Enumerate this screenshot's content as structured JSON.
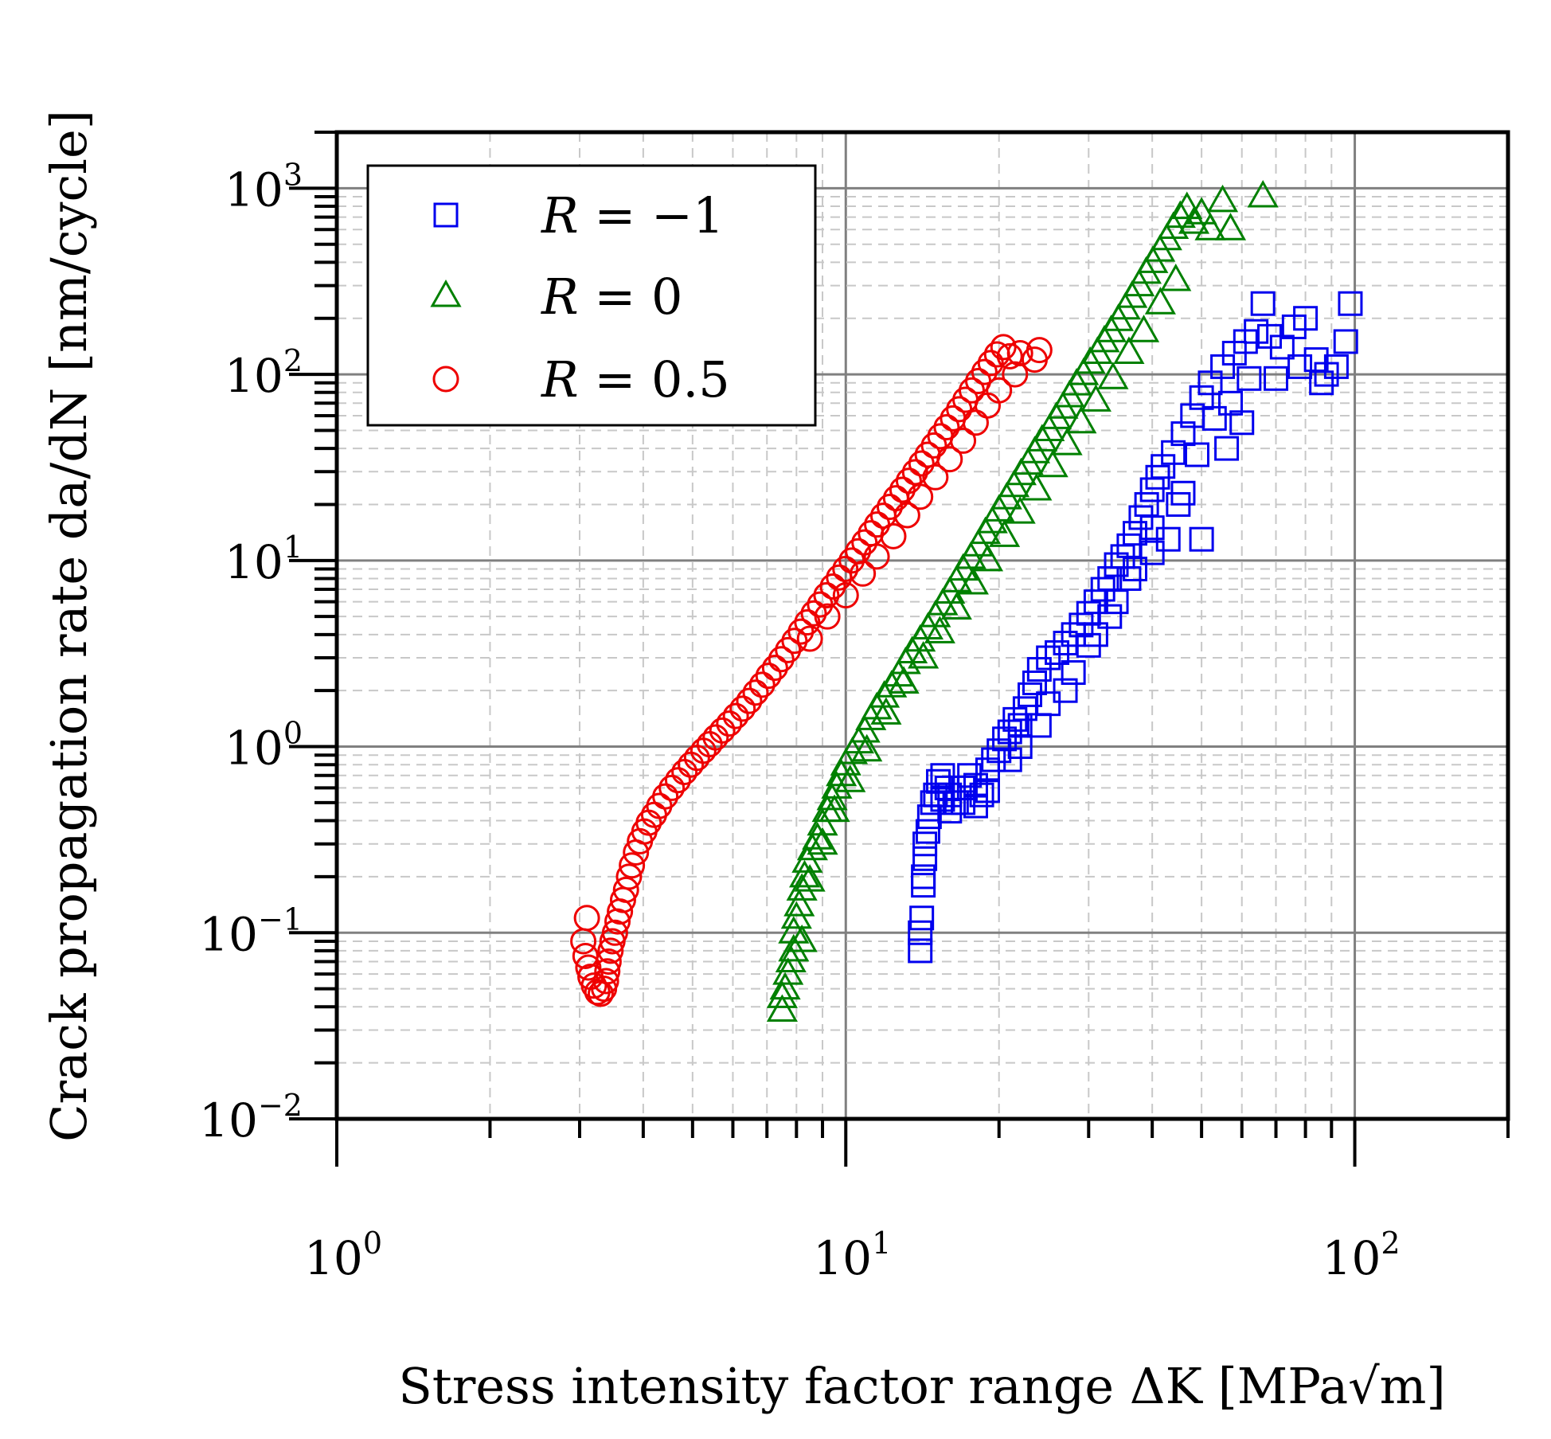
{
  "chart_data": {
    "type": "scatter",
    "scale": "log-log",
    "title": "",
    "xlabel": "Stress intensity factor range ΔK [MPa√m]",
    "ylabel": "Crack propagation rate da/dN [nm/cycle]",
    "xlim": [
      1,
      200
    ],
    "ylim": [
      0.01,
      2000
    ],
    "grid": true,
    "legend_position": "top-left",
    "x_ticks": [
      {
        "base": "10",
        "exp": "0",
        "value": 1
      },
      {
        "base": "10",
        "exp": "1",
        "value": 10
      },
      {
        "base": "10",
        "exp": "2",
        "value": 100
      }
    ],
    "y_ticks": [
      {
        "base": "10",
        "exp": "−2",
        "value": 0.01
      },
      {
        "base": "10",
        "exp": "−1",
        "value": 0.1
      },
      {
        "base": "10",
        "exp": "0",
        "value": 1
      },
      {
        "base": "10",
        "exp": "1",
        "value": 10
      },
      {
        "base": "10",
        "exp": "2",
        "value": 100
      },
      {
        "base": "10",
        "exp": "3",
        "value": 1000
      }
    ],
    "series": [
      {
        "name": "R = −1",
        "label_var": "R",
        "label_rest": " = −1",
        "marker": "square",
        "color": "#0000ee",
        "points": [
          [
            14.0,
            0.08
          ],
          [
            14.0,
            0.1
          ],
          [
            14.1,
            0.12
          ],
          [
            14.2,
            0.18
          ],
          [
            14.2,
            0.2
          ],
          [
            14.3,
            0.25
          ],
          [
            14.3,
            0.3
          ],
          [
            14.5,
            0.35
          ],
          [
            14.6,
            0.42
          ],
          [
            14.8,
            0.5
          ],
          [
            15.0,
            0.55
          ],
          [
            15.2,
            0.65
          ],
          [
            15.5,
            0.7
          ],
          [
            15.8,
            0.6
          ],
          [
            16.0,
            0.55
          ],
          [
            16.5,
            0.5
          ],
          [
            17.0,
            0.6
          ],
          [
            17.5,
            0.7
          ],
          [
            18.0,
            0.62
          ],
          [
            18.5,
            0.55
          ],
          [
            19.0,
            0.75
          ],
          [
            19.5,
            0.85
          ],
          [
            20.0,
            0.95
          ],
          [
            20.5,
            1.1
          ],
          [
            21.0,
            1.2
          ],
          [
            21.5,
            1.4
          ],
          [
            22.0,
            1.3
          ],
          [
            22.5,
            1.6
          ],
          [
            23.0,
            1.9
          ],
          [
            23.5,
            2.2
          ],
          [
            24.0,
            2.6
          ],
          [
            25.0,
            3.0
          ],
          [
            26.0,
            3.2
          ],
          [
            27.0,
            3.6
          ],
          [
            28.0,
            4.0
          ],
          [
            29.0,
            4.5
          ],
          [
            30.0,
            5.2
          ],
          [
            31.0,
            6.0
          ],
          [
            32.0,
            7.0
          ],
          [
            33.0,
            8.0
          ],
          [
            34.0,
            9.5
          ],
          [
            35.0,
            10.5
          ],
          [
            36.0,
            12.0
          ],
          [
            37.0,
            14.0
          ],
          [
            38.0,
            17.0
          ],
          [
            39.0,
            20.0
          ],
          [
            40.0,
            24.0
          ],
          [
            41.0,
            28.0
          ],
          [
            42.0,
            32.0
          ],
          [
            44.0,
            38.0
          ],
          [
            46.0,
            48.0
          ],
          [
            48.0,
            60.0
          ],
          [
            50.0,
            75.0
          ],
          [
            52.0,
            90.0
          ],
          [
            55.0,
            110.0
          ],
          [
            58.0,
            130.0
          ],
          [
            61.0,
            150.0
          ],
          [
            64.0,
            170.0
          ],
          [
            68.0,
            160.0
          ],
          [
            72.0,
            140.0
          ],
          [
            76.0,
            180.0
          ],
          [
            80.0,
            200.0
          ],
          [
            84.0,
            120.0
          ],
          [
            88.0,
            100.0
          ],
          [
            92.0,
            110.0
          ],
          [
            96.0,
            150.0
          ],
          [
            98.0,
            240.0
          ],
          [
            66.0,
            240.0
          ],
          [
            56.0,
            40.0
          ],
          [
            60.0,
            55.0
          ],
          [
            50.0,
            13.0
          ],
          [
            45.0,
            20.0
          ],
          [
            40.0,
            15.0
          ],
          [
            36.0,
            8.0
          ],
          [
            33.0,
            5.0
          ],
          [
            30.0,
            3.5
          ],
          [
            27.0,
            2.0
          ],
          [
            24.0,
            1.3
          ],
          [
            21.0,
            0.85
          ],
          [
            18.0,
            0.48
          ],
          [
            16.0,
            0.45
          ],
          [
            15.5,
            0.52
          ],
          [
            17.0,
            0.5
          ],
          [
            19.0,
            0.58
          ],
          [
            22.0,
            1.0
          ],
          [
            25.0,
            1.7
          ],
          [
            28.0,
            2.5
          ],
          [
            31.0,
            4.0
          ],
          [
            34.0,
            6.0
          ],
          [
            37.0,
            9.0
          ],
          [
            40.0,
            11.0
          ],
          [
            43.0,
            13.0
          ],
          [
            46.0,
            23.0
          ],
          [
            49.0,
            37.0
          ],
          [
            53.0,
            58.0
          ],
          [
            57.0,
            70.0
          ],
          [
            62.0,
            95.0
          ],
          [
            70.0,
            95.0
          ],
          [
            78.0,
            110.0
          ],
          [
            86.0,
            90.0
          ]
        ]
      },
      {
        "name": "R = 0",
        "label_var": "R",
        "label_rest": " = 0",
        "marker": "triangle",
        "color": "#008000",
        "points": [
          [
            7.5,
            0.038
          ],
          [
            7.5,
            0.045
          ],
          [
            7.6,
            0.05
          ],
          [
            7.7,
            0.06
          ],
          [
            7.8,
            0.07
          ],
          [
            7.9,
            0.08
          ],
          [
            7.9,
            0.1
          ],
          [
            8.0,
            0.12
          ],
          [
            8.1,
            0.14
          ],
          [
            8.2,
            0.17
          ],
          [
            8.3,
            0.2
          ],
          [
            8.4,
            0.24
          ],
          [
            8.6,
            0.28
          ],
          [
            8.8,
            0.32
          ],
          [
            9.0,
            0.38
          ],
          [
            9.2,
            0.45
          ],
          [
            9.4,
            0.52
          ],
          [
            9.6,
            0.6
          ],
          [
            9.8,
            0.7
          ],
          [
            10.0,
            0.8
          ],
          [
            10.3,
            0.92
          ],
          [
            10.6,
            1.05
          ],
          [
            10.9,
            1.2
          ],
          [
            11.2,
            1.4
          ],
          [
            11.5,
            1.6
          ],
          [
            11.9,
            1.85
          ],
          [
            12.3,
            2.1
          ],
          [
            12.7,
            2.4
          ],
          [
            13.1,
            2.8
          ],
          [
            13.5,
            3.2
          ],
          [
            14.0,
            3.7
          ],
          [
            14.5,
            4.3
          ],
          [
            15.0,
            5.0
          ],
          [
            15.5,
            5.8
          ],
          [
            16.0,
            6.7
          ],
          [
            16.5,
            7.7
          ],
          [
            17.0,
            8.9
          ],
          [
            17.6,
            10.3
          ],
          [
            18.2,
            12.0
          ],
          [
            18.8,
            14.0
          ],
          [
            19.4,
            16.0
          ],
          [
            20.0,
            18.5
          ],
          [
            20.7,
            21.5
          ],
          [
            21.4,
            25.0
          ],
          [
            22.1,
            29.0
          ],
          [
            22.8,
            33.0
          ],
          [
            23.5,
            38.0
          ],
          [
            24.3,
            44.0
          ],
          [
            25.1,
            50.0
          ],
          [
            25.9,
            58.0
          ],
          [
            26.7,
            66.0
          ],
          [
            27.5,
            76.0
          ],
          [
            28.4,
            88.0
          ],
          [
            29.3,
            100.0
          ],
          [
            30.2,
            115.0
          ],
          [
            31.2,
            130.0
          ],
          [
            32.2,
            150.0
          ],
          [
            33.2,
            170.0
          ],
          [
            34.3,
            195.0
          ],
          [
            35.4,
            225.0
          ],
          [
            36.5,
            260.0
          ],
          [
            37.7,
            300.0
          ],
          [
            38.9,
            350.0
          ],
          [
            40.1,
            400.0
          ],
          [
            41.4,
            460.0
          ],
          [
            42.7,
            530.0
          ],
          [
            44.0,
            610.0
          ],
          [
            45.4,
            700.0
          ],
          [
            46.8,
            780.0
          ],
          [
            48.3,
            650.0
          ],
          [
            50.0,
            730.0
          ],
          [
            52.0,
            600.0
          ],
          [
            55.0,
            850.0
          ],
          [
            57.0,
            600.0
          ],
          [
            66.0,
            900.0
          ],
          [
            8.2,
            0.09
          ],
          [
            8.5,
            0.19
          ],
          [
            9.0,
            0.3
          ],
          [
            9.5,
            0.45
          ],
          [
            10.2,
            0.65
          ],
          [
            11.0,
            0.95
          ],
          [
            12.0,
            1.5
          ],
          [
            13.0,
            2.2
          ],
          [
            14.2,
            3.0
          ],
          [
            15.3,
            4.1
          ],
          [
            16.5,
            5.5
          ],
          [
            17.8,
            7.5
          ],
          [
            19.0,
            10.0
          ],
          [
            20.5,
            13.5
          ],
          [
            22.0,
            18.0
          ],
          [
            23.7,
            24.0
          ],
          [
            25.5,
            32.0
          ],
          [
            27.2,
            42.0
          ],
          [
            29.0,
            55.0
          ],
          [
            31.0,
            72.0
          ],
          [
            33.5,
            95.0
          ],
          [
            36.0,
            130.0
          ],
          [
            38.5,
            170.0
          ],
          [
            41.5,
            240.0
          ],
          [
            44.5,
            320.0
          ]
        ]
      },
      {
        "name": "R = 0.5",
        "label_var": "R",
        "label_rest": " = 0.5",
        "marker": "circle",
        "color": "#ee0000",
        "points": [
          [
            3.1,
            0.12
          ],
          [
            3.05,
            0.09
          ],
          [
            3.08,
            0.075
          ],
          [
            3.12,
            0.065
          ],
          [
            3.15,
            0.058
          ],
          [
            3.2,
            0.052
          ],
          [
            3.25,
            0.048
          ],
          [
            3.3,
            0.047
          ],
          [
            3.35,
            0.05
          ],
          [
            3.38,
            0.055
          ],
          [
            3.4,
            0.062
          ],
          [
            3.42,
            0.07
          ],
          [
            3.45,
            0.08
          ],
          [
            3.48,
            0.09
          ],
          [
            3.52,
            0.1
          ],
          [
            3.56,
            0.115
          ],
          [
            3.6,
            0.13
          ],
          [
            3.65,
            0.15
          ],
          [
            3.7,
            0.17
          ],
          [
            3.75,
            0.2
          ],
          [
            3.8,
            0.23
          ],
          [
            3.87,
            0.27
          ],
          [
            3.94,
            0.31
          ],
          [
            4.02,
            0.35
          ],
          [
            4.1,
            0.39
          ],
          [
            4.2,
            0.43
          ],
          [
            4.3,
            0.48
          ],
          [
            4.42,
            0.54
          ],
          [
            4.55,
            0.6
          ],
          [
            4.68,
            0.66
          ],
          [
            4.82,
            0.73
          ],
          [
            4.96,
            0.8
          ],
          [
            5.1,
            0.87
          ],
          [
            5.25,
            0.95
          ],
          [
            5.4,
            1.03
          ],
          [
            5.55,
            1.12
          ],
          [
            5.72,
            1.22
          ],
          [
            5.9,
            1.33
          ],
          [
            6.08,
            1.46
          ],
          [
            6.27,
            1.6
          ],
          [
            6.46,
            1.76
          ],
          [
            6.65,
            1.95
          ],
          [
            6.85,
            2.15
          ],
          [
            7.05,
            2.4
          ],
          [
            7.26,
            2.65
          ],
          [
            7.47,
            2.95
          ],
          [
            7.7,
            3.3
          ],
          [
            7.93,
            3.7
          ],
          [
            8.16,
            4.15
          ],
          [
            8.4,
            4.65
          ],
          [
            8.65,
            5.2
          ],
          [
            8.9,
            5.8
          ],
          [
            9.16,
            6.5
          ],
          [
            9.43,
            7.25
          ],
          [
            9.7,
            8.1
          ],
          [
            9.98,
            9.0
          ],
          [
            10.27,
            10.0
          ],
          [
            10.57,
            11.2
          ],
          [
            10.88,
            12.5
          ],
          [
            11.2,
            14.0
          ],
          [
            11.52,
            15.6
          ],
          [
            11.85,
            17.4
          ],
          [
            12.2,
            19.4
          ],
          [
            12.55,
            21.6
          ],
          [
            12.92,
            24.0
          ],
          [
            13.3,
            26.8
          ],
          [
            13.68,
            29.8
          ],
          [
            14.08,
            33.2
          ],
          [
            14.48,
            37.0
          ],
          [
            14.9,
            41.5
          ],
          [
            15.34,
            46.5
          ],
          [
            15.78,
            52.0
          ],
          [
            16.24,
            58.0
          ],
          [
            16.7,
            65.0
          ],
          [
            17.18,
            73.0
          ],
          [
            17.68,
            82.0
          ],
          [
            18.2,
            92.0
          ],
          [
            18.72,
            103.0
          ],
          [
            19.26,
            115.0
          ],
          [
            19.82,
            128.0
          ],
          [
            20.4,
            140.0
          ],
          [
            21.0,
            125.0
          ],
          [
            22.0,
            130.0
          ],
          [
            23.5,
            120.0
          ],
          [
            24.0,
            135.0
          ],
          [
            8.5,
            3.8
          ],
          [
            9.2,
            5.0
          ],
          [
            10.0,
            6.5
          ],
          [
            10.8,
            8.5
          ],
          [
            11.5,
            10.5
          ],
          [
            12.4,
            13.5
          ],
          [
            13.2,
            17.5
          ],
          [
            14.0,
            22.0
          ],
          [
            15.0,
            28.0
          ],
          [
            16.0,
            35.0
          ],
          [
            17.0,
            44.0
          ],
          [
            18.0,
            55.0
          ],
          [
            19.0,
            68.0
          ],
          [
            20.0,
            82.0
          ],
          [
            21.5,
            100.0
          ]
        ]
      }
    ]
  }
}
